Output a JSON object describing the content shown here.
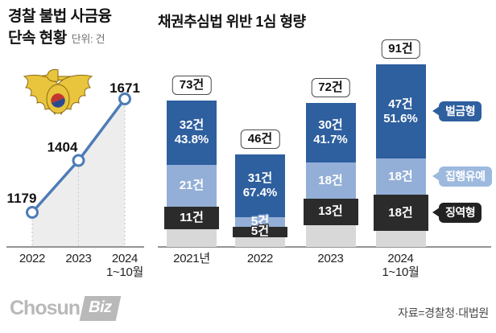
{
  "titles": {
    "left_line1": "경찰 불법 사금융",
    "left_line2": "단속 현황",
    "left_unit": "단위: 건",
    "right": "채권추심법 위반 1심 형량"
  },
  "chart_data": [
    {
      "type": "line",
      "title": "경찰 불법 사금융 단속 현황",
      "unit": "건",
      "categories": [
        "2022",
        "2023",
        "2024 1~10월"
      ],
      "values": [
        1179,
        1404,
        1671
      ],
      "x_tick_lines": [
        [
          "2022"
        ],
        [
          "2023"
        ],
        [
          "2024",
          "1~10월"
        ]
      ],
      "colors": {
        "line": "#4d7cb7",
        "marker_fill": "#ffffff",
        "area": "#ededed",
        "dotted": "#c5c5c5",
        "value_text": "#111111"
      }
    },
    {
      "type": "bar",
      "stacked": true,
      "title": "채권추심법 위반 1심 형량",
      "unit": "건",
      "categories": [
        "2021년",
        "2022",
        "2023",
        "2024 1~10월"
      ],
      "totals": [
        73,
        46,
        72,
        91
      ],
      "series": [
        {
          "name": "벌금형",
          "color": "#2e5f9e",
          "values": [
            32,
            31,
            30,
            47
          ],
          "pct": [
            "43.8%",
            "67.4%",
            "41.7%",
            "51.6%"
          ]
        },
        {
          "name": "집행유예",
          "color": "#93afd7",
          "values": [
            21,
            5,
            18,
            18
          ]
        },
        {
          "name": "징역형",
          "color": "#2b2b2b",
          "values": [
            11,
            5,
            13,
            18
          ]
        },
        {
          "name": "",
          "color": "#d8d8d8",
          "values": [
            9,
            5,
            11,
            8
          ],
          "unlabeled": true
        }
      ],
      "x_tick_lines": [
        [
          "2021년"
        ],
        [
          "2022"
        ],
        [
          "2023"
        ],
        [
          "2024",
          "1~10월"
        ]
      ],
      "legend": [
        {
          "label": "벌금형",
          "bg": "#2e5f9e",
          "fg": "#ffffff"
        },
        {
          "label": "집행유예",
          "bg": "#9db9de",
          "fg": "#ffffff"
        },
        {
          "label": "징역형",
          "bg": "#222222",
          "fg": "#ffffff"
        }
      ]
    }
  ],
  "icons": {
    "police_emblem": {
      "gold": "#e8c53c",
      "outline": "#8a6a15",
      "red": "#c13531",
      "blue": "#2a4a8f"
    }
  },
  "footer": {
    "source": "자료=경찰청·대법원",
    "logo_part1": "Chosun",
    "logo_part2": "Biz"
  }
}
